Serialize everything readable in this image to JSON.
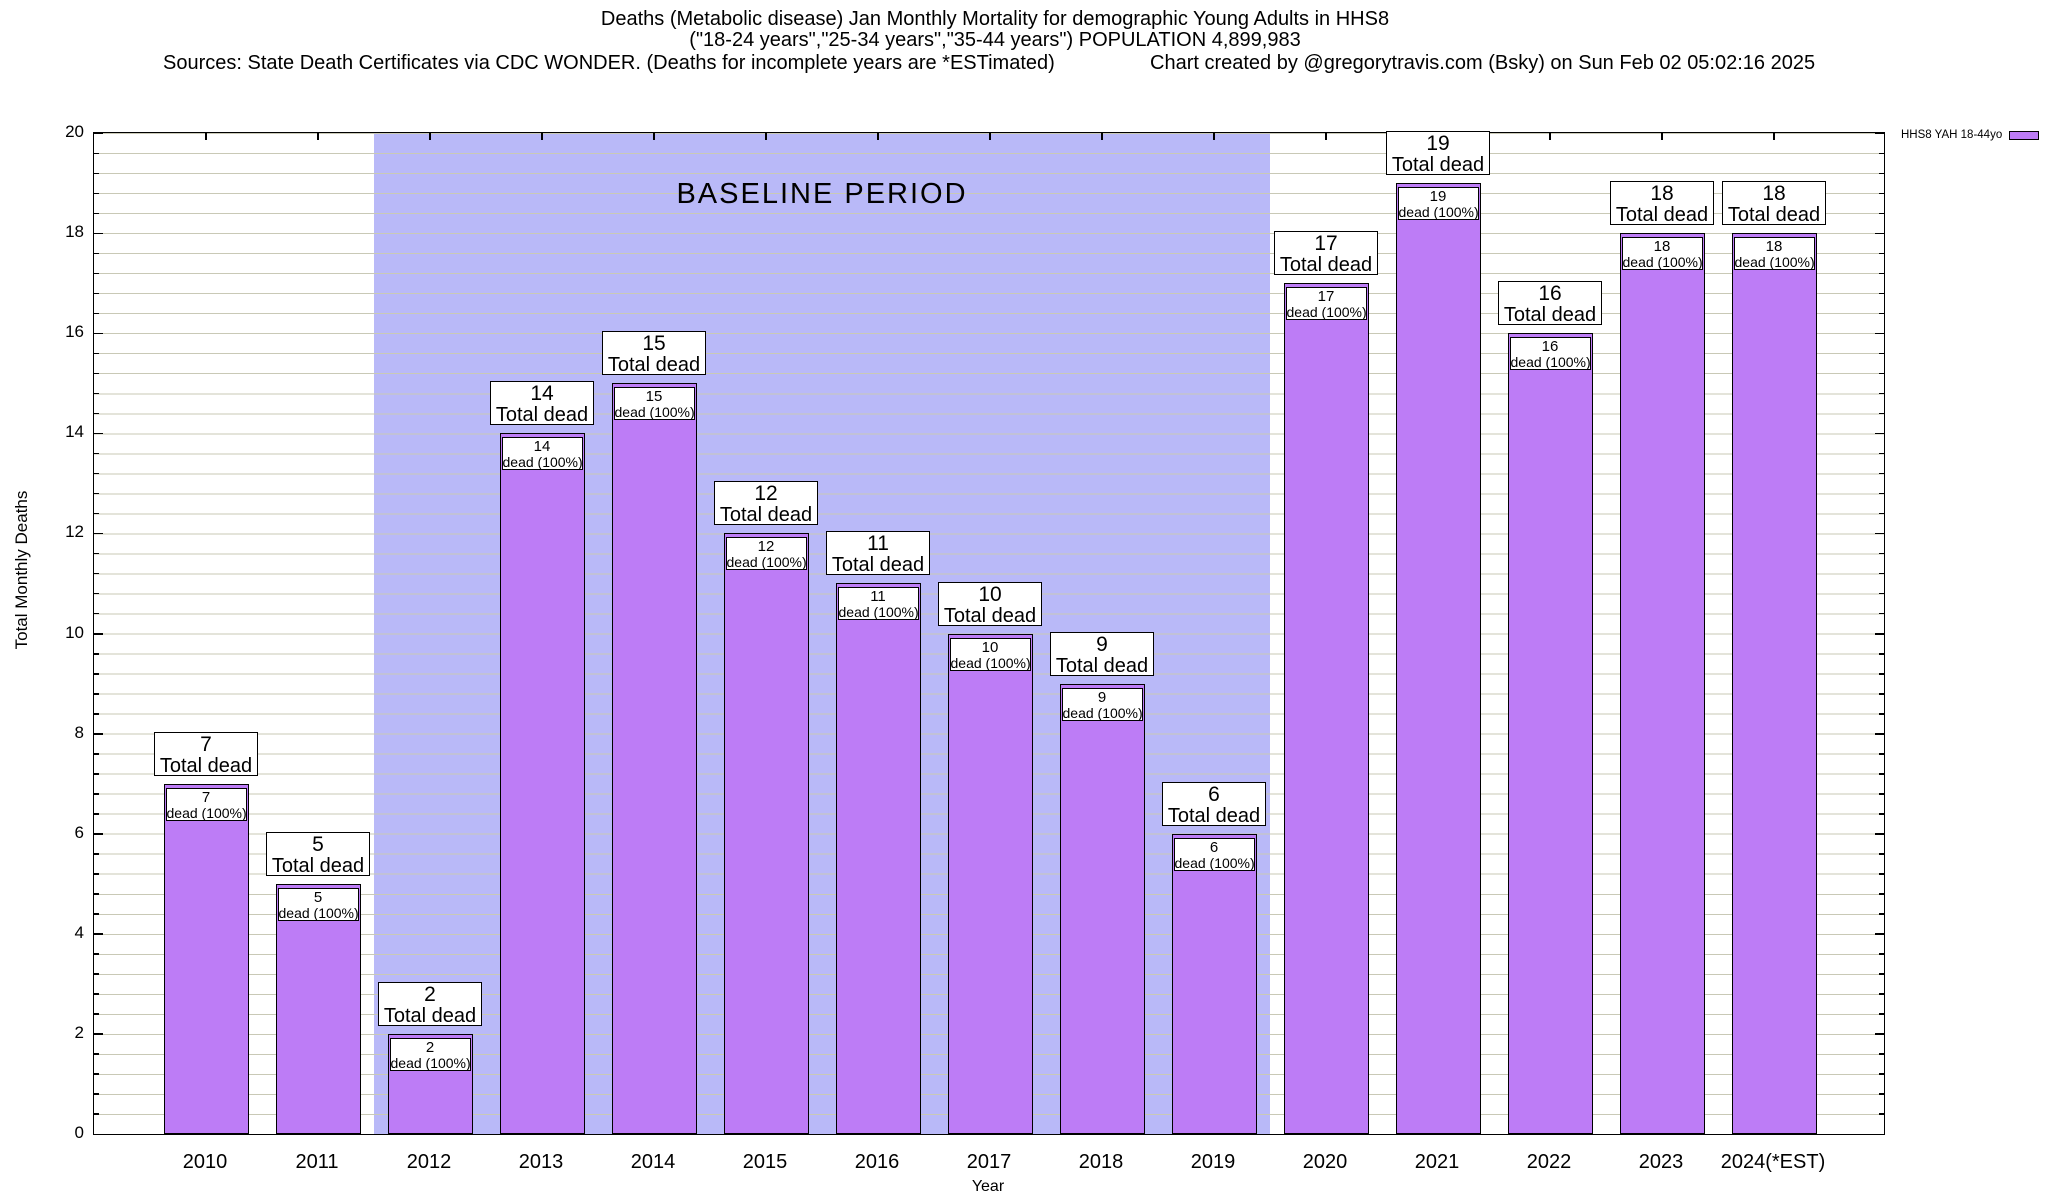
{
  "header": {
    "title_line1": "Deaths (Metabolic disease) Jan Monthly Mortality for demographic Young Adults in HHS8",
    "title_line2": "(\"18-24 years\",\"25-34 years\",\"35-44 years\") POPULATION 4,899,983",
    "sources": "Sources: State Death Certificates via CDC WONDER. (Deaths for incomplete years are *ESTimated)",
    "credit": "Chart created by @gregorytravis.com (Bsky) on Sun Feb 02 05:02:16 2025"
  },
  "chart_data": {
    "type": "bar",
    "title": "Deaths (Metabolic disease) Jan Monthly Mortality for demographic Young Adults in HHS8",
    "xlabel": "Year",
    "ylabel": "Total Monthly Deaths",
    "ylim": [
      0,
      20
    ],
    "y_major_tick_step": 2,
    "y_minor_tick_step": 0.4,
    "y_tick_labels": [
      "0",
      "2",
      "4",
      "6",
      "8",
      "10",
      "12",
      "14",
      "16",
      "18",
      "20"
    ],
    "grid": true,
    "categories": [
      "2010",
      "2011",
      "2012",
      "2013",
      "2014",
      "2015",
      "2016",
      "2017",
      "2018",
      "2019",
      "2020",
      "2021",
      "2022",
      "2023",
      "2024(*EST)"
    ],
    "series": [
      {
        "name": "HHS8 YAH 18-44yo",
        "values": [
          7,
          5,
          2,
          14,
          15,
          12,
          11,
          10,
          9,
          6,
          17,
          19,
          16,
          18,
          18
        ]
      }
    ],
    "bar_annotation_top": "Total dead",
    "bar_annotation_inner": "dead (100%)",
    "baseline_region": {
      "label": "BASELINE PERIOD",
      "start_category": "2012",
      "end_category": "2019"
    },
    "legend": {
      "position": "top-right-outside",
      "entries": [
        "HHS8 YAH 18-44yo"
      ]
    }
  },
  "colors": {
    "bar_fill": "#bd7cf6",
    "bar_border": "#000000",
    "baseline_region_fill": "#b9b9f8",
    "gridline": "#c9c9b6",
    "axis": "#000000",
    "label_box_bg": "#ffffff",
    "label_box_border": "#000000"
  }
}
